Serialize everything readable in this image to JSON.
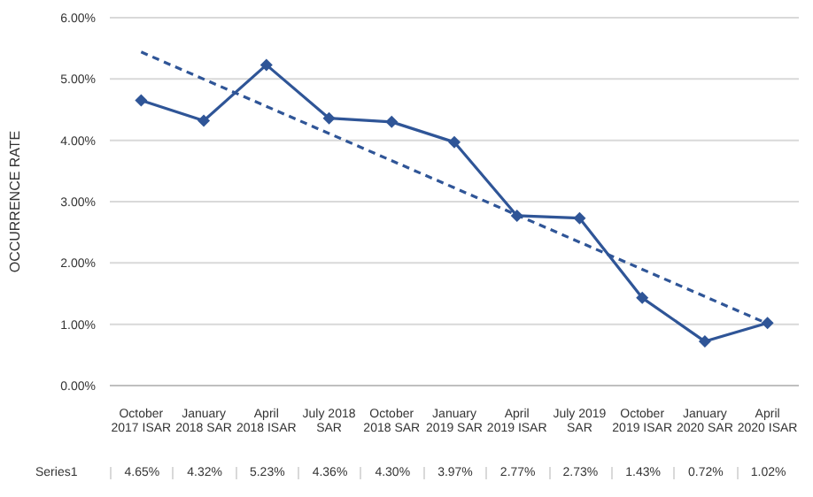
{
  "chart_data": {
    "type": "line",
    "ylabel": "OCCURRENCE RATE",
    "categories": [
      "October 2017 ISAR",
      "January 2018 SAR",
      "April 2018 ISAR",
      "July 2018 SAR",
      "October 2018 SAR",
      "January 2019 SAR",
      "April 2019 ISAR",
      "July 2019 SAR",
      "October 2019 ISAR",
      "January 2020 SAR",
      "April 2020 ISAR"
    ],
    "series": [
      {
        "name": "Series1",
        "color": "#2f5597",
        "marker": "diamond",
        "line_style": "solid",
        "values": [
          4.65,
          4.32,
          5.23,
          4.36,
          4.3,
          3.97,
          2.77,
          2.73,
          1.43,
          0.72,
          1.02
        ],
        "value_labels": [
          "4.65%",
          "4.32%",
          "5.23%",
          "4.36%",
          "4.30%",
          "3.97%",
          "2.77%",
          "2.73%",
          "1.43%",
          "0.72%",
          "1.02%"
        ]
      },
      {
        "type": "line",
        "color": "#2f5597",
        "marker": "none",
        "line_style": "dashed",
        "x": [
          "October 2017 ISAR",
          "April 2020 ISAR"
        ],
        "values": [
          5.44,
          1.01
        ]
      }
    ],
    "ylim": [
      0,
      6
    ],
    "yticks": [
      {
        "value": 0,
        "label": "0.00%"
      },
      {
        "value": 1,
        "label": "1.00%"
      },
      {
        "value": 2,
        "label": "2.00%"
      },
      {
        "value": 3,
        "label": "3.00%"
      },
      {
        "value": 4,
        "label": "4.00%"
      },
      {
        "value": 5,
        "label": "5.00%"
      },
      {
        "value": 6,
        "label": "6.00%"
      }
    ],
    "grid": "y",
    "legend": false
  }
}
